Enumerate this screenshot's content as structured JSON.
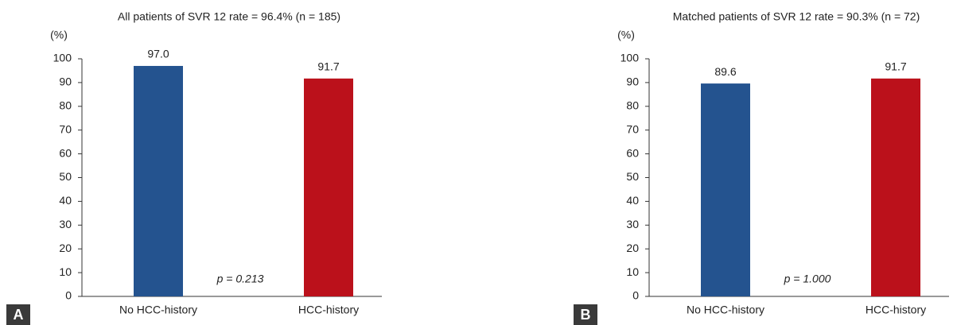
{
  "chart_data": [
    {
      "type": "bar",
      "panel_label": "A",
      "title": "All patients of SVR 12 rate = 96.4% (n = 185)",
      "y_label": "(%)",
      "categories": [
        "No HCC-history",
        "HCC-history"
      ],
      "values": [
        97.0,
        91.7
      ],
      "value_labels": [
        "97.0",
        "91.7"
      ],
      "colors": [
        "#24538f",
        "#bb111b"
      ],
      "ylim": [
        0,
        100
      ],
      "yticks": [
        0,
        10,
        20,
        30,
        40,
        50,
        60,
        70,
        80,
        90,
        100
      ],
      "annotation": "p = 0.213"
    },
    {
      "type": "bar",
      "panel_label": "B",
      "title": "Matched patients of SVR 12 rate = 90.3% (n = 72)",
      "y_label": "(%)",
      "categories": [
        "No HCC-history",
        "HCC-history"
      ],
      "values": [
        89.6,
        91.7
      ],
      "colors": [
        "#24538f",
        "#bb111b"
      ],
      "ylim": [
        0,
        100
      ],
      "yticks": [
        0,
        10,
        20,
        30,
        40,
        50,
        60,
        70,
        80,
        90,
        100
      ],
      "annotation": "p = 1.000"
    }
  ]
}
